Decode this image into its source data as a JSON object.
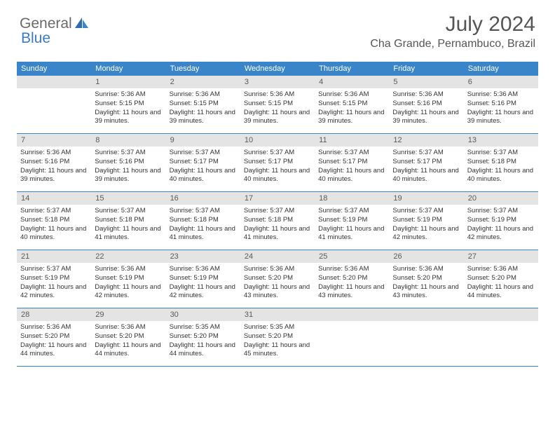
{
  "logo": {
    "text1": "General",
    "text2": "Blue"
  },
  "title": "July 2024",
  "location": "Cha Grande, Pernambuco, Brazil",
  "colors": {
    "header_bg": "#3a85c9",
    "daynum_bg": "#e4e4e4",
    "text_dark": "#333333",
    "text_gray": "#555555",
    "logo_gray": "#6a6a6a",
    "logo_blue": "#3a7cc2"
  },
  "day_headers": [
    "Sunday",
    "Monday",
    "Tuesday",
    "Wednesday",
    "Thursday",
    "Friday",
    "Saturday"
  ],
  "weeks": [
    [
      {
        "n": "",
        "sr": "",
        "ss": "",
        "dl": ""
      },
      {
        "n": "1",
        "sr": "Sunrise: 5:36 AM",
        "ss": "Sunset: 5:15 PM",
        "dl": "Daylight: 11 hours and 39 minutes."
      },
      {
        "n": "2",
        "sr": "Sunrise: 5:36 AM",
        "ss": "Sunset: 5:15 PM",
        "dl": "Daylight: 11 hours and 39 minutes."
      },
      {
        "n": "3",
        "sr": "Sunrise: 5:36 AM",
        "ss": "Sunset: 5:15 PM",
        "dl": "Daylight: 11 hours and 39 minutes."
      },
      {
        "n": "4",
        "sr": "Sunrise: 5:36 AM",
        "ss": "Sunset: 5:15 PM",
        "dl": "Daylight: 11 hours and 39 minutes."
      },
      {
        "n": "5",
        "sr": "Sunrise: 5:36 AM",
        "ss": "Sunset: 5:16 PM",
        "dl": "Daylight: 11 hours and 39 minutes."
      },
      {
        "n": "6",
        "sr": "Sunrise: 5:36 AM",
        "ss": "Sunset: 5:16 PM",
        "dl": "Daylight: 11 hours and 39 minutes."
      }
    ],
    [
      {
        "n": "7",
        "sr": "Sunrise: 5:36 AM",
        "ss": "Sunset: 5:16 PM",
        "dl": "Daylight: 11 hours and 39 minutes."
      },
      {
        "n": "8",
        "sr": "Sunrise: 5:37 AM",
        "ss": "Sunset: 5:16 PM",
        "dl": "Daylight: 11 hours and 39 minutes."
      },
      {
        "n": "9",
        "sr": "Sunrise: 5:37 AM",
        "ss": "Sunset: 5:17 PM",
        "dl": "Daylight: 11 hours and 40 minutes."
      },
      {
        "n": "10",
        "sr": "Sunrise: 5:37 AM",
        "ss": "Sunset: 5:17 PM",
        "dl": "Daylight: 11 hours and 40 minutes."
      },
      {
        "n": "11",
        "sr": "Sunrise: 5:37 AM",
        "ss": "Sunset: 5:17 PM",
        "dl": "Daylight: 11 hours and 40 minutes."
      },
      {
        "n": "12",
        "sr": "Sunrise: 5:37 AM",
        "ss": "Sunset: 5:17 PM",
        "dl": "Daylight: 11 hours and 40 minutes."
      },
      {
        "n": "13",
        "sr": "Sunrise: 5:37 AM",
        "ss": "Sunset: 5:18 PM",
        "dl": "Daylight: 11 hours and 40 minutes."
      }
    ],
    [
      {
        "n": "14",
        "sr": "Sunrise: 5:37 AM",
        "ss": "Sunset: 5:18 PM",
        "dl": "Daylight: 11 hours and 40 minutes."
      },
      {
        "n": "15",
        "sr": "Sunrise: 5:37 AM",
        "ss": "Sunset: 5:18 PM",
        "dl": "Daylight: 11 hours and 41 minutes."
      },
      {
        "n": "16",
        "sr": "Sunrise: 5:37 AM",
        "ss": "Sunset: 5:18 PM",
        "dl": "Daylight: 11 hours and 41 minutes."
      },
      {
        "n": "17",
        "sr": "Sunrise: 5:37 AM",
        "ss": "Sunset: 5:18 PM",
        "dl": "Daylight: 11 hours and 41 minutes."
      },
      {
        "n": "18",
        "sr": "Sunrise: 5:37 AM",
        "ss": "Sunset: 5:19 PM",
        "dl": "Daylight: 11 hours and 41 minutes."
      },
      {
        "n": "19",
        "sr": "Sunrise: 5:37 AM",
        "ss": "Sunset: 5:19 PM",
        "dl": "Daylight: 11 hours and 42 minutes."
      },
      {
        "n": "20",
        "sr": "Sunrise: 5:37 AM",
        "ss": "Sunset: 5:19 PM",
        "dl": "Daylight: 11 hours and 42 minutes."
      }
    ],
    [
      {
        "n": "21",
        "sr": "Sunrise: 5:37 AM",
        "ss": "Sunset: 5:19 PM",
        "dl": "Daylight: 11 hours and 42 minutes."
      },
      {
        "n": "22",
        "sr": "Sunrise: 5:36 AM",
        "ss": "Sunset: 5:19 PM",
        "dl": "Daylight: 11 hours and 42 minutes."
      },
      {
        "n": "23",
        "sr": "Sunrise: 5:36 AM",
        "ss": "Sunset: 5:19 PM",
        "dl": "Daylight: 11 hours and 42 minutes."
      },
      {
        "n": "24",
        "sr": "Sunrise: 5:36 AM",
        "ss": "Sunset: 5:20 PM",
        "dl": "Daylight: 11 hours and 43 minutes."
      },
      {
        "n": "25",
        "sr": "Sunrise: 5:36 AM",
        "ss": "Sunset: 5:20 PM",
        "dl": "Daylight: 11 hours and 43 minutes."
      },
      {
        "n": "26",
        "sr": "Sunrise: 5:36 AM",
        "ss": "Sunset: 5:20 PM",
        "dl": "Daylight: 11 hours and 43 minutes."
      },
      {
        "n": "27",
        "sr": "Sunrise: 5:36 AM",
        "ss": "Sunset: 5:20 PM",
        "dl": "Daylight: 11 hours and 44 minutes."
      }
    ],
    [
      {
        "n": "28",
        "sr": "Sunrise: 5:36 AM",
        "ss": "Sunset: 5:20 PM",
        "dl": "Daylight: 11 hours and 44 minutes."
      },
      {
        "n": "29",
        "sr": "Sunrise: 5:36 AM",
        "ss": "Sunset: 5:20 PM",
        "dl": "Daylight: 11 hours and 44 minutes."
      },
      {
        "n": "30",
        "sr": "Sunrise: 5:35 AM",
        "ss": "Sunset: 5:20 PM",
        "dl": "Daylight: 11 hours and 44 minutes."
      },
      {
        "n": "31",
        "sr": "Sunrise: 5:35 AM",
        "ss": "Sunset: 5:20 PM",
        "dl": "Daylight: 11 hours and 45 minutes."
      },
      {
        "n": "",
        "sr": "",
        "ss": "",
        "dl": ""
      },
      {
        "n": "",
        "sr": "",
        "ss": "",
        "dl": ""
      },
      {
        "n": "",
        "sr": "",
        "ss": "",
        "dl": ""
      }
    ]
  ]
}
